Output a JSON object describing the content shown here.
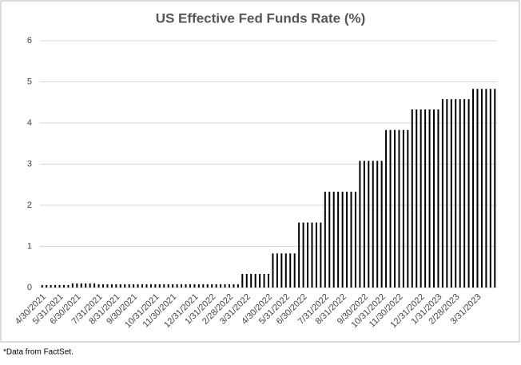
{
  "chart_data": {
    "type": "bar",
    "title": "US Effective Fed Funds Rate (%)",
    "categories": [
      "4/30/2021",
      null,
      null,
      null,
      "5/31/2021",
      null,
      null,
      null,
      "6/30/2021",
      null,
      null,
      null,
      null,
      "7/31/2021",
      null,
      null,
      null,
      "8/31/2021",
      null,
      null,
      null,
      "9/30/2021",
      null,
      null,
      null,
      null,
      "10/31/2021",
      null,
      null,
      null,
      "11/30/2021",
      null,
      null,
      null,
      null,
      "12/31/2021",
      null,
      null,
      null,
      "1/31/2022",
      null,
      null,
      null,
      "2/28/2022",
      null,
      null,
      null,
      "3/31/2022",
      null,
      null,
      null,
      null,
      "4/30/2022",
      null,
      null,
      null,
      "5/31/2022",
      null,
      null,
      null,
      "6/30/2022",
      null,
      null,
      null,
      null,
      "7/31/2022",
      null,
      null,
      null,
      "8/31/2022",
      null,
      null,
      null,
      null,
      "9/30/2022",
      null,
      null,
      null,
      "10/31/2022",
      null,
      null,
      null,
      "11/30/2022",
      null,
      null,
      null,
      null,
      "12/31/2022",
      null,
      null,
      null,
      "1/31/2023",
      null,
      null,
      null,
      "2/28/2023",
      null,
      null,
      null,
      null,
      "3/31/2023",
      null,
      null,
      null,
      null
    ],
    "values": [
      0.06,
      0.06,
      0.06,
      0.06,
      0.06,
      0.06,
      0.06,
      0.1,
      0.1,
      0.1,
      0.1,
      0.1,
      0.1,
      0.08,
      0.08,
      0.08,
      0.08,
      0.08,
      0.08,
      0.08,
      0.08,
      0.08,
      0.08,
      0.08,
      0.08,
      0.08,
      0.08,
      0.08,
      0.08,
      0.08,
      0.08,
      0.08,
      0.08,
      0.08,
      0.08,
      0.08,
      0.08,
      0.08,
      0.08,
      0.08,
      0.08,
      0.08,
      0.08,
      0.08,
      0.08,
      0.08,
      0.33,
      0.33,
      0.33,
      0.33,
      0.33,
      0.33,
      0.33,
      0.83,
      0.83,
      0.83,
      0.83,
      0.83,
      0.83,
      1.58,
      1.58,
      1.58,
      1.58,
      1.58,
      1.58,
      2.33,
      2.33,
      2.33,
      2.33,
      2.33,
      2.33,
      2.33,
      2.33,
      3.08,
      3.08,
      3.08,
      3.08,
      3.08,
      3.08,
      3.83,
      3.83,
      3.83,
      3.83,
      3.83,
      3.83,
      4.33,
      4.33,
      4.33,
      4.33,
      4.33,
      4.33,
      4.33,
      4.58,
      4.58,
      4.58,
      4.58,
      4.58,
      4.58,
      4.58,
      4.83,
      4.83,
      4.83,
      4.83,
      4.83,
      4.83
    ],
    "color": "#000000",
    "ylim": [
      0,
      6
    ],
    "yticks": [
      0,
      1,
      2,
      3,
      4,
      5,
      6
    ],
    "grid": true,
    "footnote": "*Data from FactSet."
  }
}
